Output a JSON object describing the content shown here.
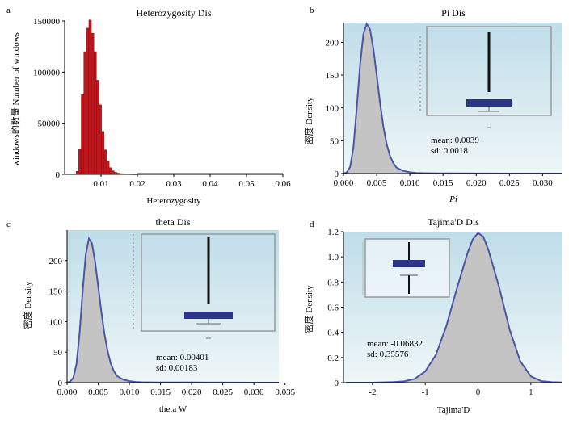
{
  "colors": {
    "histogram_fill": "#c0161b",
    "density_fill": "#c4c4c4",
    "density_line": "#4d56a6",
    "inset_box": "#2b3688",
    "panel_bg_top": "#bfdde9",
    "panel_bg_bottom": "#eef6f7"
  },
  "chart_data": [
    {
      "panel": "a",
      "type": "bar",
      "title": "Heterozygosity Dis",
      "xlabel": "Heterozygosity",
      "ylabel": "windows的数量 Number of windows",
      "xlim": [
        0.0,
        0.06
      ],
      "ylim": [
        0,
        150000
      ],
      "xticks": [
        "0.01",
        "0.02",
        "0.03",
        "0.04",
        "0.05",
        "0.06"
      ],
      "yticks": [
        "0",
        "50000",
        "100000",
        "150000"
      ],
      "bin_centers": [
        0.0035,
        0.0042,
        0.0049,
        0.0056,
        0.0063,
        0.007,
        0.0077,
        0.0084,
        0.0091,
        0.0098,
        0.0105,
        0.0112,
        0.0119,
        0.0126,
        0.0133,
        0.014,
        0.0147,
        0.0154,
        0.0161,
        0.0168,
        0.0175,
        0.0182,
        0.0189,
        0.0196
      ],
      "values": [
        3000,
        25000,
        78000,
        120000,
        143000,
        151000,
        138000,
        120000,
        92000,
        68000,
        42000,
        24000,
        13000,
        6500,
        3500,
        2000,
        1200,
        800,
        500,
        350,
        250,
        200,
        150,
        100
      ]
    },
    {
      "panel": "b",
      "type": "area",
      "title": "Pi Dis",
      "xlabel": "Pi",
      "ylabel": "密度 Density",
      "xlim": [
        0.0,
        0.033
      ],
      "ylim": [
        0,
        230
      ],
      "xticks": [
        "0.000",
        "0.005",
        "0.010",
        "0.015",
        "0.020",
        "0.025",
        "0.030"
      ],
      "yticks": [
        "0",
        "50",
        "100",
        "150",
        "200"
      ],
      "x": [
        0.0,
        0.0005,
        0.001,
        0.0015,
        0.002,
        0.0025,
        0.003,
        0.0035,
        0.004,
        0.0045,
        0.005,
        0.0055,
        0.006,
        0.0065,
        0.007,
        0.0075,
        0.008,
        0.009,
        0.01,
        0.011,
        0.012,
        0.014,
        0.016,
        0.02,
        0.025,
        0.03,
        0.033
      ],
      "y": [
        0,
        2,
        10,
        40,
        100,
        165,
        212,
        228,
        220,
        190,
        150,
        108,
        72,
        45,
        27,
        16,
        9,
        4,
        2,
        1,
        0.6,
        0.3,
        0.2,
        0.1,
        0.05,
        0.02,
        0
      ],
      "annotations": [
        "mean: 0.0039",
        "sd: 0.0018"
      ]
    },
    {
      "panel": "c",
      "type": "area",
      "title": "theta Dis",
      "xlabel": "theta W",
      "ylabel": "密度 Density",
      "xlim": [
        0.0,
        0.034
      ],
      "ylim": [
        0,
        250
      ],
      "xticks": [
        "0.000",
        "0.005",
        "0.010",
        "0.015",
        "0.020",
        "0.025",
        "0.030",
        "0.035"
      ],
      "yticks": [
        "0",
        "50",
        "100",
        "150",
        "200"
      ],
      "x": [
        0.0,
        0.0005,
        0.001,
        0.0015,
        0.002,
        0.0025,
        0.003,
        0.0035,
        0.004,
        0.0045,
        0.005,
        0.0055,
        0.006,
        0.0065,
        0.007,
        0.0075,
        0.008,
        0.009,
        0.01,
        0.011,
        0.012,
        0.014,
        0.016,
        0.02,
        0.025,
        0.03,
        0.034
      ],
      "y": [
        0,
        2,
        8,
        30,
        80,
        150,
        210,
        236,
        228,
        198,
        158,
        116,
        80,
        52,
        32,
        19,
        11,
        5,
        2.5,
        1.2,
        0.7,
        0.4,
        0.3,
        0.2,
        0.1,
        0.05,
        0
      ],
      "annotations": [
        "mean: 0.00401",
        "sd: 0.00183"
      ]
    },
    {
      "panel": "d",
      "type": "area",
      "title": "Tajima'D Dis",
      "xlabel": "Tajima'D",
      "ylabel": "密度 Density",
      "xlim": [
        -2.55,
        1.6
      ],
      "ylim": [
        0,
        1.2
      ],
      "xticks": [
        "-2",
        "-1",
        "0",
        "1"
      ],
      "yticks": [
        "0",
        "0.2",
        "0.4",
        "0.6",
        "0.8",
        "1.0",
        "1.2"
      ],
      "x": [
        -2.5,
        -2.0,
        -1.6,
        -1.4,
        -1.2,
        -1.0,
        -0.8,
        -0.6,
        -0.4,
        -0.2,
        -0.1,
        0.0,
        0.1,
        0.2,
        0.4,
        0.6,
        0.8,
        1.0,
        1.2,
        1.4,
        1.6
      ],
      "y": [
        0,
        0,
        0.005,
        0.01,
        0.03,
        0.09,
        0.22,
        0.45,
        0.75,
        1.03,
        1.14,
        1.19,
        1.16,
        1.05,
        0.76,
        0.42,
        0.17,
        0.05,
        0.012,
        0.004,
        0.002
      ],
      "annotations": [
        "mean: -0.06832",
        "sd: 0.35576"
      ]
    }
  ]
}
